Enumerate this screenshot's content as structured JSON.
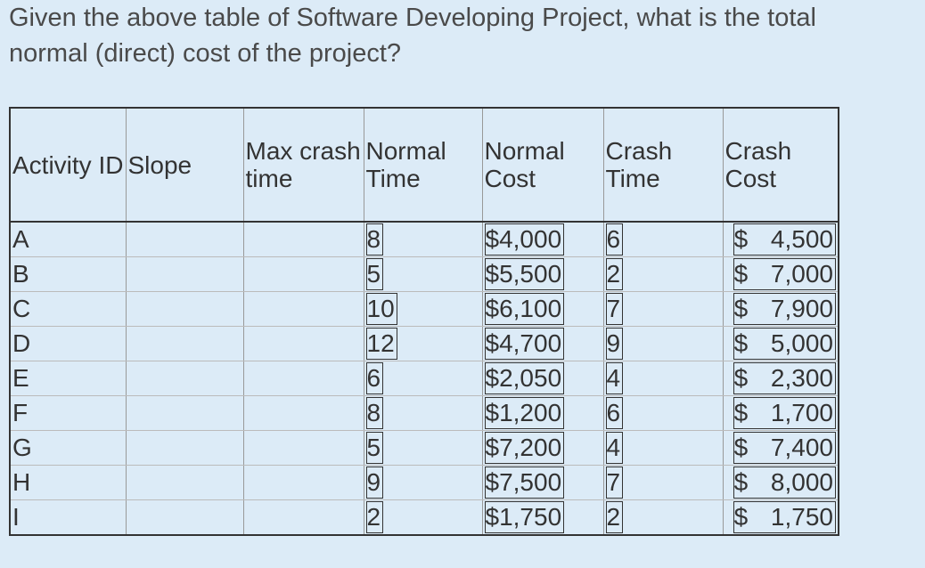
{
  "question": "Given the above table of Software Developing Project, what is the total normal (direct) cost of the project?",
  "table": {
    "columns": [
      "Activity ID",
      "Slope",
      "Max crash time",
      "Normal Time",
      "Normal Cost",
      "Crash Time",
      "Crash Cost"
    ],
    "rows": [
      {
        "activity": "A",
        "normal_time": "8",
        "normal_cost": "$4,000",
        "crash_time": "6",
        "crash_cost": "$ 4,500"
      },
      {
        "activity": "B",
        "normal_time": "5",
        "normal_cost": "$5,500",
        "crash_time": "2",
        "crash_cost": "$ 7,000"
      },
      {
        "activity": "C",
        "normal_time": "10",
        "normal_cost": "$6,100",
        "crash_time": "7",
        "crash_cost": "$ 7,900"
      },
      {
        "activity": "D",
        "normal_time": "12",
        "normal_cost": "$4,700",
        "crash_time": "9",
        "crash_cost": "$ 5,000"
      },
      {
        "activity": "E",
        "normal_time": "6",
        "normal_cost": "$2,050",
        "crash_time": "4",
        "crash_cost": "$ 2,300"
      },
      {
        "activity": "F",
        "normal_time": "8",
        "normal_cost": "$1,200",
        "crash_time": "6",
        "crash_cost": "$ 1,700"
      },
      {
        "activity": "G",
        "normal_time": "5",
        "normal_cost": "$7,200",
        "crash_time": "4",
        "crash_cost": "$ 7,400"
      },
      {
        "activity": "H",
        "normal_time": "9",
        "normal_cost": "$7,500",
        "crash_time": "7",
        "crash_cost": "$ 8,000"
      },
      {
        "activity": "I",
        "normal_time": "2",
        "normal_cost": "$1,750",
        "crash_time": "2",
        "crash_cost": "$ 1,750"
      }
    ]
  }
}
